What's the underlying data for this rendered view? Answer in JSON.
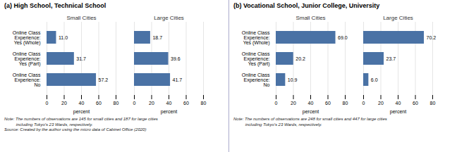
{
  "chart_data": [
    {
      "type": "bar",
      "orientation": "horizontal",
      "title": "Small Cities",
      "annotations": [
        "(a) High School, Technical School",
        "Note: The numbers of observations are 145 for small cities and 187 for large cities\n          including Tokyo's 23 Wards, respectively.",
        "Source: Created by the author using the micro data of Cabinet Office (2020)"
      ],
      "categories": [
        "Online Class\nExperience:\nYes (Whole)",
        "Online Class\nExperience:\nYes (Part)",
        "Online Class\nExperience:\nNo"
      ],
      "values": [
        11.0,
        31.7,
        57.2
      ],
      "value_labels": [
        "11.0",
        "31.7",
        "57.2"
      ],
      "data_labels": true,
      "color": "#4a72a5",
      "xlabel": "percent",
      "xlim": [
        0,
        80
      ],
      "xticks": [
        0,
        20,
        40,
        60,
        80
      ],
      "grid": true
    },
    {
      "type": "bar",
      "orientation": "horizontal",
      "title": "Large Cities",
      "categories": [
        "Online Class\nExperience:\nYes (Whole)",
        "Online Class\nExperience:\nYes (Part)",
        "Online Class\nExperience:\nNo"
      ],
      "values": [
        18.7,
        39.6,
        41.7
      ],
      "value_labels": [
        "18.7",
        "39.6",
        "41.7"
      ],
      "data_labels": true,
      "color": "#4a72a5",
      "xlabel": "percent",
      "xlim": [
        0,
        80
      ],
      "xticks": [
        0,
        20,
        40,
        60,
        80
      ],
      "grid": true,
      "tick_labels": "x"
    },
    {
      "type": "bar",
      "orientation": "horizontal",
      "title": "Small Cities",
      "annotations": [
        "(b) Vocational School, Junior College, University",
        "Note: The numbers of observations are 248 for small cities and 447 for large cities\n          including Tokyo's 23 Wards, respectively."
      ],
      "categories": [
        "Online Class\nExperience:\nYes (Whole)",
        "Online Class\nExperience:\nYes (Part)",
        "Online Class\nExperience:\nNo"
      ],
      "values": [
        69.0,
        20.2,
        10.9
      ],
      "value_labels": [
        "69.0",
        "20.2",
        "10.9"
      ],
      "data_labels": true,
      "color": "#4a72a5",
      "xlabel": "percent",
      "xlim": [
        0,
        80
      ],
      "xticks": [
        0,
        20,
        40,
        60,
        80
      ],
      "grid": true
    },
    {
      "type": "bar",
      "orientation": "horizontal",
      "title": "Large Cities",
      "categories": [
        "Online Class\nExperience:\nYes (Whole)",
        "Online Class\nExperience:\nYes (Part)",
        "Online Class\nExperience:\nNo"
      ],
      "values": [
        70.2,
        23.7,
        6.0
      ],
      "value_labels": [
        "70.2",
        "23.7",
        "6.0"
      ],
      "data_labels": true,
      "color": "#4a72a5",
      "xlabel": "percent",
      "xlim": [
        0,
        80
      ],
      "xticks": [
        0,
        20,
        40,
        60,
        80
      ],
      "grid": true,
      "tick_labels": "x"
    }
  ]
}
